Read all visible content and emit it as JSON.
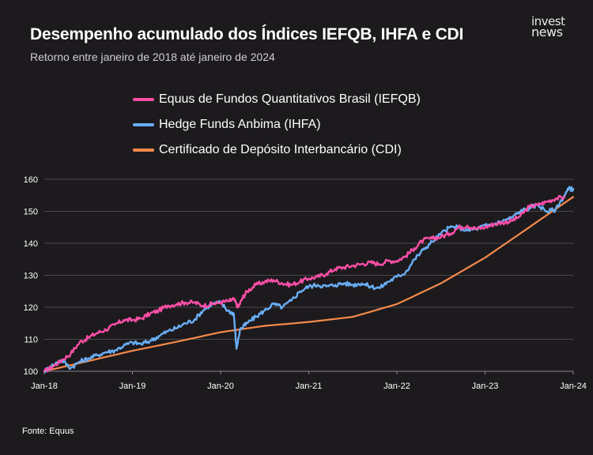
{
  "header": {
    "title": "Desempenho acumulado dos Índices IEFQB, IHFA e CDI",
    "subtitle": "Retorno entre janeiro de 2018 até janeiro de 2024"
  },
  "logo": {
    "line1": "invest",
    "line2": "news"
  },
  "source": "Fonte: Equus",
  "chart_data": {
    "type": "line",
    "title": "Desempenho acumulado dos Índices IEFQB, IHFA e CDI",
    "subtitle": "Retorno entre janeiro de 2018 até janeiro de 2024",
    "xlabel": "",
    "ylabel": "",
    "x_range": [
      2018.0,
      2024.0
    ],
    "ylim": [
      100,
      160
    ],
    "x_ticks": [
      2018,
      2019,
      2020,
      2021,
      2022,
      2023,
      2024
    ],
    "x_tick_labels": [
      "Jan-18",
      "Jan-19",
      "Jan-20",
      "Jan-21",
      "Jan-22",
      "Jan-23",
      "Jan-24"
    ],
    "y_ticks": [
      100,
      110,
      120,
      130,
      140,
      150,
      160
    ],
    "grid": "horizontal",
    "legend_position": "top",
    "series": [
      {
        "name": "Equus de Fundos Quantitativos Brasil (IEFQB)",
        "color": "#ff4fa8",
        "x": [
          2018.0,
          2018.1,
          2018.2,
          2018.3,
          2018.4,
          2018.5,
          2018.6,
          2018.7,
          2018.8,
          2018.9,
          2019.0,
          2019.1,
          2019.2,
          2019.3,
          2019.4,
          2019.5,
          2019.6,
          2019.7,
          2019.8,
          2019.9,
          2020.0,
          2020.1,
          2020.15,
          2020.2,
          2020.25,
          2020.3,
          2020.4,
          2020.5,
          2020.6,
          2020.7,
          2020.8,
          2020.9,
          2021.0,
          2021.1,
          2021.2,
          2021.3,
          2021.4,
          2021.5,
          2021.6,
          2021.7,
          2021.8,
          2021.9,
          2022.0,
          2022.1,
          2022.2,
          2022.3,
          2022.4,
          2022.5,
          2022.6,
          2022.7,
          2022.8,
          2022.9,
          2023.0,
          2023.1,
          2023.2,
          2023.3,
          2023.4,
          2023.5,
          2023.6,
          2023.7,
          2023.8,
          2023.9
        ],
        "y": [
          100,
          101.5,
          103.5,
          105.5,
          109.0,
          110.5,
          112.0,
          113.0,
          114.5,
          116.0,
          116.0,
          116.5,
          118.0,
          119.0,
          120.5,
          121.0,
          121.5,
          121.5,
          120.5,
          121.0,
          121.5,
          122.0,
          122.5,
          120.0,
          123.0,
          125.0,
          127.0,
          128.0,
          128.5,
          127.5,
          127.0,
          128.0,
          129.0,
          129.5,
          130.5,
          132.0,
          132.5,
          133.0,
          133.5,
          134.0,
          133.5,
          134.5,
          134.5,
          136.0,
          138.5,
          141.0,
          141.5,
          142.0,
          143.0,
          145.0,
          145.5,
          144.5,
          145.0,
          146.0,
          146.5,
          147.0,
          148.5,
          151.5,
          152.0,
          153.0,
          154.0,
          154.5
        ]
      },
      {
        "name": "Hedge Funds Anbima (IHFA)",
        "color": "#6aaef5",
        "x": [
          2018.0,
          2018.1,
          2018.2,
          2018.3,
          2018.4,
          2018.5,
          2018.6,
          2018.7,
          2018.8,
          2018.9,
          2019.0,
          2019.1,
          2019.2,
          2019.3,
          2019.4,
          2019.5,
          2019.6,
          2019.7,
          2019.8,
          2019.9,
          2020.0,
          2020.08,
          2020.15,
          2020.18,
          2020.22,
          2020.3,
          2020.4,
          2020.5,
          2020.6,
          2020.7,
          2020.8,
          2020.9,
          2021.0,
          2021.1,
          2021.2,
          2021.3,
          2021.4,
          2021.5,
          2021.6,
          2021.7,
          2021.8,
          2021.9,
          2022.0,
          2022.1,
          2022.2,
          2022.3,
          2022.4,
          2022.5,
          2022.6,
          2022.7,
          2022.8,
          2022.9,
          2023.0,
          2023.1,
          2023.2,
          2023.3,
          2023.4,
          2023.5,
          2023.6,
          2023.7,
          2023.8,
          2023.9,
          2023.95,
          2024.0
        ],
        "y": [
          100,
          102.0,
          103.5,
          101.0,
          103.0,
          104.0,
          105.0,
          106.0,
          106.5,
          108.0,
          109.0,
          108.5,
          109.5,
          111.0,
          112.5,
          113.5,
          115.0,
          116.0,
          119.0,
          121.0,
          121.5,
          119.0,
          118.0,
          107.0,
          113.0,
          115.0,
          117.0,
          119.0,
          121.0,
          120.0,
          122.0,
          125.0,
          126.5,
          127.0,
          126.5,
          127.0,
          127.5,
          127.0,
          127.5,
          126.5,
          126.0,
          128.0,
          129.5,
          131.0,
          135.0,
          138.0,
          140.5,
          143.0,
          145.0,
          145.0,
          144.0,
          144.5,
          145.5,
          146.0,
          147.0,
          148.0,
          150.0,
          151.0,
          152.0,
          150.0,
          150.5,
          155.0,
          157.0,
          157.0
        ]
      },
      {
        "name": "Certificado de Depósito Interbancário (CDI)",
        "color": "#f58a4b",
        "x": [
          2018.0,
          2018.5,
          2019.0,
          2019.5,
          2020.0,
          2020.5,
          2021.0,
          2021.5,
          2022.0,
          2022.5,
          2023.0,
          2023.5,
          2024.0
        ],
        "y": [
          100,
          103.2,
          106.4,
          109.2,
          112.2,
          114.2,
          115.4,
          117.0,
          121.0,
          127.5,
          135.5,
          145.0,
          154.5
        ]
      }
    ]
  }
}
